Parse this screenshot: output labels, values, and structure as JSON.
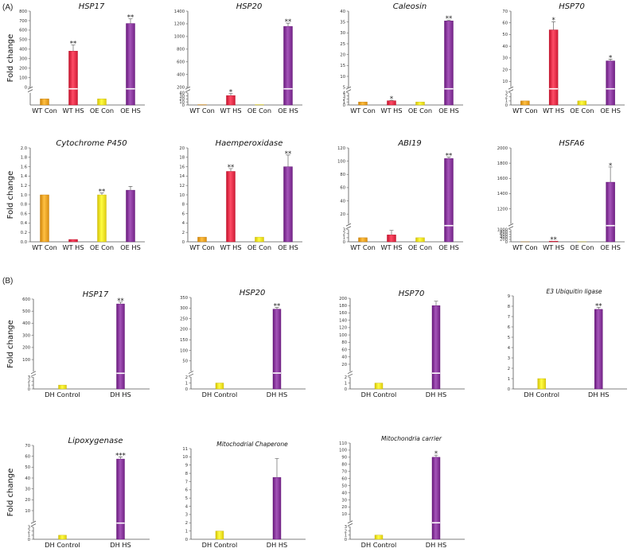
{
  "panel_labels": [
    "(A)",
    "(B)"
  ],
  "colors": {
    "wt_con": "#f2a72a",
    "wt_hs": "#e8344e",
    "oe_con": "#f7e52a",
    "oe_hs": "#8c3ca0",
    "dh_con": "#f7e52a",
    "dh_hs": "#8c3ca0"
  },
  "chart_data": [
    {
      "type": "bar",
      "title": "HSP17",
      "ylabel": "Fold change",
      "show_ylabel": true,
      "categories": [
        "WT Con",
        "WT HS",
        "OE Con",
        "OE HS"
      ],
      "values": [
        1,
        380,
        1,
        670
      ],
      "errors": [
        0,
        65,
        0,
        50
      ],
      "colors": [
        "wt_con",
        "wt_hs",
        "oe_con",
        "oe_hs"
      ],
      "significance": [
        "",
        "**",
        "",
        "**"
      ],
      "axis": {
        "broken": true,
        "low_range": [
          0,
          2
        ],
        "low_ticks": [],
        "high_range": [
          0,
          800
        ],
        "high_ticks": [
          0,
          100,
          200,
          300,
          400,
          500,
          600,
          700,
          800
        ],
        "high_tick_labels": [
          "0",
          "100",
          "200",
          "300",
          "400",
          "500",
          "600",
          "700",
          "800"
        ]
      }
    },
    {
      "type": "bar",
      "title": "HSP20",
      "ylabel": "",
      "show_ylabel": false,
      "categories": [
        "WT Con",
        "WT HS",
        "OE Con",
        "OE HS"
      ],
      "values": [
        1,
        31,
        1,
        1160
      ],
      "errors": [
        0,
        7,
        0,
        50
      ],
      "colors": [
        "wt_con",
        "wt_hs",
        "oe_con",
        "oe_hs"
      ],
      "significance": [
        "",
        "*",
        "",
        "**"
      ],
      "axis": {
        "broken": true,
        "low_range": [
          0,
          40
        ],
        "low_ticks": [
          0,
          10,
          20,
          30,
          40
        ],
        "low_tick_labels": [
          "0",
          "10",
          "20",
          "30",
          "40"
        ],
        "high_range": [
          200,
          1400
        ],
        "high_ticks": [
          200,
          400,
          600,
          800,
          1000,
          1200,
          1400
        ],
        "high_tick_labels": [
          "200",
          "400",
          "600",
          "800",
          "1000",
          "1200",
          "1400"
        ]
      }
    },
    {
      "type": "bar",
      "title": "Caleosin",
      "ylabel": "",
      "show_ylabel": false,
      "categories": [
        "WT Con",
        "WT HS",
        "OE Con",
        "OE HS"
      ],
      "values": [
        1,
        1.4,
        1,
        35.5
      ],
      "errors": [
        0,
        0.15,
        0,
        0.4
      ],
      "colors": [
        "wt_con",
        "wt_hs",
        "oe_con",
        "oe_hs"
      ],
      "significance": [
        "",
        "*",
        "",
        "**"
      ],
      "axis": {
        "broken": true,
        "low_range": [
          0,
          4
        ],
        "low_ticks": [
          0,
          1,
          2,
          3,
          4
        ],
        "low_tick_labels": [
          "0",
          "1",
          "2",
          "3",
          "4"
        ],
        "high_range": [
          5,
          40
        ],
        "high_ticks": [
          5,
          10,
          15,
          20,
          25,
          30,
          35,
          40
        ],
        "high_tick_labels": [
          "5",
          "10",
          "15",
          "20",
          "25",
          "30",
          "35",
          "40"
        ]
      }
    },
    {
      "type": "bar",
      "title": "HSP70",
      "ylabel": "",
      "show_ylabel": false,
      "categories": [
        "WT Con",
        "WT HS",
        "OE Con",
        "OE HS"
      ],
      "values": [
        1,
        54,
        1,
        27.5
      ],
      "errors": [
        0,
        7,
        0,
        1.5
      ],
      "colors": [
        "wt_con",
        "wt_hs",
        "oe_con",
        "oe_hs"
      ],
      "significance": [
        "",
        "*",
        "",
        "*"
      ],
      "axis": {
        "broken": true,
        "low_range": [
          0,
          3
        ],
        "low_ticks": [
          0,
          1,
          2,
          3
        ],
        "low_tick_labels": [
          "0",
          "1",
          "2",
          "3"
        ],
        "high_range": [
          5,
          70
        ],
        "high_ticks": [
          10,
          20,
          30,
          40,
          50,
          60,
          70
        ],
        "high_tick_labels": [
          "10",
          "20",
          "30",
          "40",
          "50",
          "60",
          "70"
        ]
      }
    },
    {
      "type": "bar",
      "title": "Cytochrome P450",
      "ylabel": "Fold change",
      "show_ylabel": true,
      "categories": [
        "WT Con",
        "WT HS",
        "OE Con",
        "OE HS"
      ],
      "values": [
        1,
        0.05,
        1,
        1.1
      ],
      "errors": [
        0,
        0,
        0.04,
        0.08
      ],
      "colors": [
        "wt_con",
        "wt_hs",
        "oe_con",
        "oe_hs"
      ],
      "significance": [
        "",
        "",
        "**",
        ""
      ],
      "axis": {
        "broken": false,
        "range": [
          0,
          2
        ],
        "ticks": [
          0,
          0.2,
          0.4,
          0.6,
          0.8,
          1,
          1.2,
          1.4,
          1.6,
          1.8,
          2
        ],
        "tick_labels": [
          "0.0",
          "0.2",
          "0.4",
          "0.6",
          "0.8",
          "1.0",
          "1.2",
          "1.4",
          "1.6",
          "1.8",
          "2.0"
        ]
      }
    },
    {
      "type": "bar",
      "title": "Haemperoxidase",
      "ylabel": "",
      "show_ylabel": false,
      "categories": [
        "WT Con",
        "WT HS",
        "OE Con",
        "OE HS"
      ],
      "values": [
        1,
        15,
        1,
        16
      ],
      "errors": [
        0,
        0.6,
        0,
        2.5
      ],
      "colors": [
        "wt_con",
        "wt_hs",
        "oe_con",
        "oe_hs"
      ],
      "significance": [
        "",
        "**",
        "",
        "**"
      ],
      "axis": {
        "broken": false,
        "range": [
          0,
          20
        ],
        "ticks": [
          0,
          2,
          4,
          6,
          8,
          10,
          12,
          14,
          16,
          18,
          20
        ],
        "tick_labels": [
          "0",
          "2",
          "4",
          "6",
          "8",
          "10",
          "12",
          "14",
          "16",
          "18",
          "20"
        ]
      }
    },
    {
      "type": "bar",
      "title": "ABI19",
      "ylabel": "",
      "show_ylabel": false,
      "categories": [
        "WT Con",
        "WT HS",
        "OE Con",
        "OE HS"
      ],
      "values": [
        1,
        1.7,
        1,
        104
      ],
      "errors": [
        0,
        1.1,
        0,
        2
      ],
      "colors": [
        "wt_con",
        "wt_hs",
        "oe_con",
        "oe_hs"
      ],
      "significance": [
        "",
        "",
        "",
        "**"
      ],
      "axis": {
        "broken": true,
        "low_range": [
          0,
          3
        ],
        "low_ticks": [
          0,
          1,
          2,
          3
        ],
        "low_tick_labels": [
          "0",
          "1",
          "2",
          "3"
        ],
        "high_range": [
          5,
          120
        ],
        "high_ticks": [
          20,
          40,
          60,
          80,
          100,
          120
        ],
        "high_tick_labels": [
          "20",
          "40",
          "60",
          "80",
          "100",
          "120"
        ]
      }
    },
    {
      "type": "bar",
      "title": "HSFA6",
      "ylabel": "",
      "show_ylabel": false,
      "categories": [
        "WT Con",
        "WT HS",
        "OE Con",
        "OE HS"
      ],
      "values": [
        1,
        55,
        1,
        1550
      ],
      "errors": [
        0,
        0,
        0,
        200
      ],
      "colors": [
        "wt_con",
        "wt_hs",
        "oe_con",
        "oe_hs"
      ],
      "significance": [
        "",
        "**",
        "",
        "*"
      ],
      "axis": {
        "broken": true,
        "low_range": [
          0,
          1000
        ],
        "low_ticks": [
          0,
          200,
          400,
          600,
          800,
          1000
        ],
        "low_tick_labels": [
          "0",
          "200",
          "400",
          "600",
          "800",
          "1000"
        ],
        "high_range": [
          1000,
          2000
        ],
        "high_ticks": [
          1000,
          1200,
          1400,
          1600,
          1800,
          2000
        ],
        "high_tick_labels": [
          "1000",
          "1200",
          "1400",
          "1600",
          "1800",
          "2000"
        ]
      }
    },
    {
      "type": "bar",
      "title": "HSP17",
      "ylabel": "Fold change",
      "show_ylabel": true,
      "categories": [
        "DH Control",
        "DH HS"
      ],
      "values": [
        1,
        560
      ],
      "errors": [
        0,
        15
      ],
      "colors": [
        "dh_con",
        "dh_hs"
      ],
      "significance": [
        "",
        "**"
      ],
      "axis": {
        "broken": true,
        "low_range": [
          0,
          3
        ],
        "low_ticks": [
          0,
          1,
          2,
          3
        ],
        "low_tick_labels": [
          "0",
          "1",
          "2",
          "3"
        ],
        "high_range": [
          0,
          600
        ],
        "high_ticks": [
          0,
          100,
          200,
          300,
          400,
          500,
          600
        ],
        "high_tick_labels": [
          "0",
          "100",
          "200",
          "300",
          "400",
          "500",
          "600"
        ]
      }
    },
    {
      "type": "bar",
      "title": "HSP20",
      "ylabel": "",
      "show_ylabel": false,
      "categories": [
        "DH Control",
        "DH HS"
      ],
      "values": [
        1,
        295
      ],
      "errors": [
        0,
        8
      ],
      "colors": [
        "dh_con",
        "dh_hs"
      ],
      "significance": [
        "",
        "**"
      ],
      "axis": {
        "broken": true,
        "low_range": [
          0,
          2
        ],
        "low_ticks": [
          0,
          1,
          2
        ],
        "low_tick_labels": [
          "0",
          "1",
          "2"
        ],
        "high_range": [
          0,
          350
        ],
        "high_ticks": [
          0,
          50,
          100,
          150,
          200,
          250,
          300,
          350
        ],
        "high_tick_labels": [
          "0",
          "50",
          "100",
          "150",
          "200",
          "250",
          "300",
          "350"
        ]
      }
    },
    {
      "type": "bar",
      "title": "HSP70",
      "ylabel": "",
      "show_ylabel": false,
      "categories": [
        "DH Control",
        "DH HS"
      ],
      "values": [
        1,
        180
      ],
      "errors": [
        0,
        12
      ],
      "colors": [
        "dh_con",
        "dh_hs"
      ],
      "significance": [
        "",
        ""
      ],
      "axis": {
        "broken": true,
        "low_range": [
          0,
          2
        ],
        "low_ticks": [
          0,
          1,
          2
        ],
        "low_tick_labels": [
          "0",
          "1",
          "2"
        ],
        "high_range": [
          0,
          200
        ],
        "high_ticks": [
          20,
          40,
          60,
          80,
          100,
          120,
          140,
          160,
          180,
          200
        ],
        "high_tick_labels": [
          "20",
          "40",
          "60",
          "80",
          "100",
          "120",
          "140",
          "160",
          "180",
          "200"
        ]
      }
    },
    {
      "type": "bar",
      "title": "E3 Ubiquitin ligase",
      "ylabel": "",
      "show_ylabel": false,
      "categories": [
        "DH Control",
        "DH HS"
      ],
      "values": [
        1,
        7.7
      ],
      "errors": [
        0,
        0.2
      ],
      "colors": [
        "dh_con",
        "dh_hs"
      ],
      "significance": [
        "",
        "**"
      ],
      "axis": {
        "broken": false,
        "range": [
          0,
          9
        ],
        "ticks": [
          0,
          1,
          2,
          3,
          4,
          5,
          6,
          7,
          8,
          9
        ],
        "tick_labels": [
          "0",
          "1",
          "2",
          "3",
          "4",
          "5",
          "6",
          "7",
          "8",
          "9"
        ]
      }
    },
    {
      "type": "bar",
      "title": "Lipoxygenase",
      "ylabel": "Fold change",
      "show_ylabel": true,
      "categories": [
        "DH Control",
        "DH HS"
      ],
      "values": [
        1,
        57.5
      ],
      "errors": [
        0,
        2
      ],
      "colors": [
        "dh_con",
        "dh_hs"
      ],
      "significance": [
        "",
        "***"
      ],
      "axis": {
        "broken": true,
        "low_range": [
          0,
          3
        ],
        "low_ticks": [
          0,
          1,
          2,
          3
        ],
        "low_tick_labels": [
          "0",
          "1",
          "2",
          "3"
        ],
        "high_range": [
          0,
          70
        ],
        "high_ticks": [
          0,
          10,
          20,
          30,
          40,
          50,
          60,
          70
        ],
        "high_tick_labels": [
          "0",
          "10",
          "20",
          "30",
          "40",
          "50",
          "60",
          "70"
        ]
      }
    },
    {
      "type": "bar",
      "title": "Mitochodrial Chaperone",
      "ylabel": "",
      "show_ylabel": false,
      "categories": [
        "DH Control",
        "DH HS"
      ],
      "values": [
        1,
        7.5
      ],
      "errors": [
        0,
        2.3
      ],
      "colors": [
        "dh_con",
        "dh_hs"
      ],
      "significance": [
        "",
        ""
      ],
      "axis": {
        "broken": false,
        "range": [
          0,
          11
        ],
        "ticks": [
          0,
          1,
          2,
          3,
          4,
          5,
          6,
          7,
          8,
          9,
          10,
          11
        ],
        "tick_labels": [
          "0",
          "1",
          "2",
          "3",
          "4",
          "5",
          "6",
          "7",
          "8",
          "9",
          "10",
          "11"
        ]
      }
    },
    {
      "type": "bar",
      "title": "Mitochondria carrier",
      "ylabel": "",
      "show_ylabel": false,
      "categories": [
        "DH Control",
        "DH HS"
      ],
      "values": [
        1,
        90
      ],
      "errors": [
        0,
        3
      ],
      "colors": [
        "dh_con",
        "dh_hs"
      ],
      "significance": [
        "",
        "*"
      ],
      "axis": {
        "broken": true,
        "low_range": [
          0,
          3
        ],
        "low_ticks": [
          0,
          1,
          2,
          3
        ],
        "low_tick_labels": [
          "0",
          "1",
          "2",
          "3"
        ],
        "high_range": [
          0,
          110
        ],
        "high_ticks": [
          0,
          10,
          20,
          30,
          40,
          50,
          60,
          70,
          80,
          90,
          100,
          110
        ],
        "high_tick_labels": [
          "0",
          "10",
          "20",
          "30",
          "40",
          "50",
          "60",
          "70",
          "80",
          "90",
          "100",
          "110"
        ]
      }
    }
  ]
}
